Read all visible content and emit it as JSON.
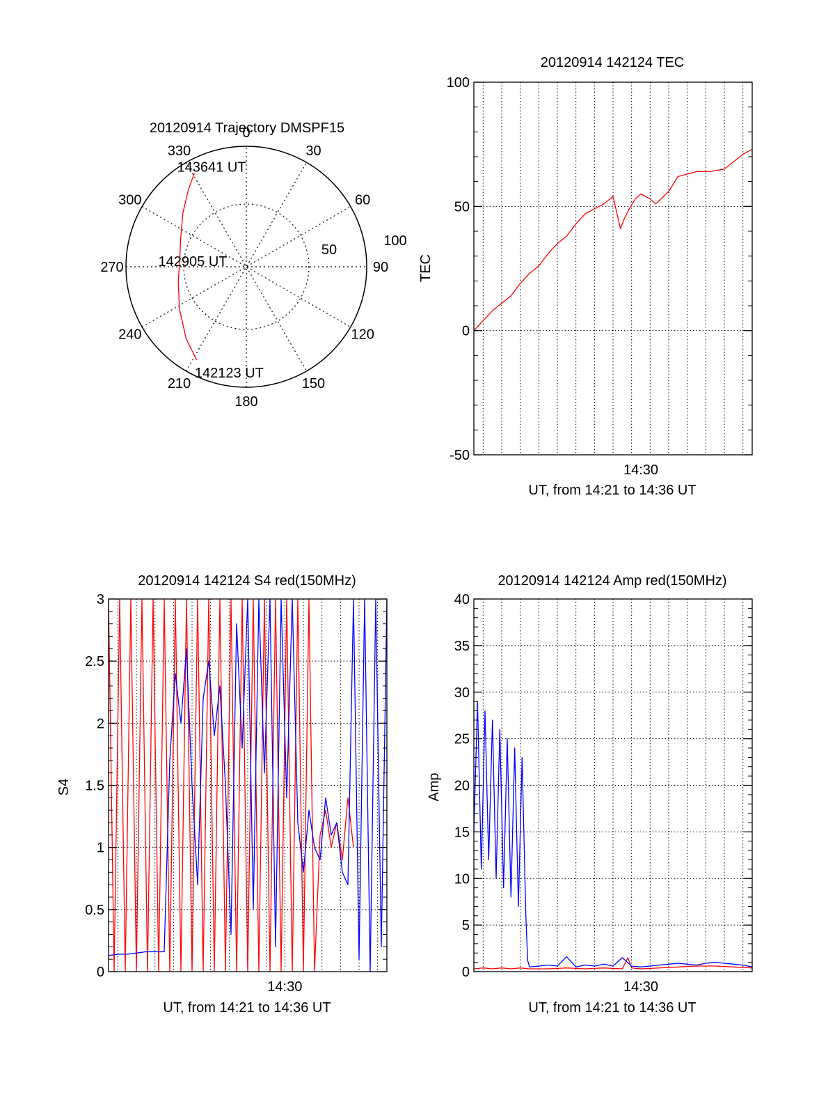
{
  "colors": {
    "red": "#ff0000",
    "blue": "#0000ff",
    "axis": "#000000",
    "background": "#ffffff"
  },
  "chart_data": [
    {
      "type": "polar",
      "title": "20120914 Trajectory DMSPF15",
      "angle_labels": [
        "0",
        "30",
        "60",
        "90",
        "120",
        "150",
        "180",
        "210",
        "240",
        "270",
        "300",
        "330"
      ],
      "radial_labels": [
        "50",
        "100"
      ],
      "grid": "dotted",
      "series": [
        {
          "color": "#ff0000",
          "points": [
            {
              "az": 208,
              "el": 11
            },
            {
              "az": 220,
              "el": 20
            },
            {
              "az": 238,
              "el": 31
            },
            {
              "az": 258,
              "el": 38
            },
            {
              "az": 275,
              "el": 40
            },
            {
              "az": 292,
              "el": 37
            },
            {
              "az": 310,
              "el": 28
            },
            {
              "az": 323,
              "el": 18
            },
            {
              "az": 331,
              "el": 10
            }
          ]
        }
      ],
      "annotations": [
        {
          "text": "143641 UT",
          "az": 341,
          "el": 11
        },
        {
          "text": "142905 UT",
          "az": 276,
          "el": 50
        },
        {
          "text": "142123 UT",
          "az": 189,
          "el": 10
        }
      ]
    },
    {
      "type": "line",
      "title": "20120914 142124 TEC",
      "xlabel": "UT, from 14:21 to 14:36 UT",
      "ylabel": "TEC",
      "xlim": [
        0,
        15
      ],
      "ylim": [
        -50,
        100
      ],
      "yticks": [
        -50,
        0,
        50,
        100
      ],
      "xticks": [
        {
          "x": 9,
          "label": "14:30"
        }
      ],
      "grid": true,
      "series": [
        {
          "color": "#ff0000",
          "x": [
            0.0,
            0.5,
            1.0,
            1.5,
            2.0,
            2.5,
            3.0,
            3.5,
            4.0,
            4.5,
            5.0,
            5.5,
            6.0,
            6.5,
            7.0,
            7.5,
            7.9,
            8.1,
            8.3,
            8.7,
            9.0,
            9.5,
            9.8,
            10.5,
            11.0,
            12.0,
            12.7,
            13.5,
            14.0,
            14.5,
            15.0
          ],
          "y": [
            0,
            4,
            8,
            11,
            14,
            19,
            23,
            26,
            31,
            35,
            38,
            43,
            47,
            49,
            51,
            54,
            41,
            45,
            48,
            53,
            55,
            53,
            51,
            56,
            62,
            64,
            64,
            65,
            68,
            71,
            73
          ]
        }
      ]
    },
    {
      "type": "line",
      "title": "20120914 142124 S4 red(150MHz)",
      "xlabel": "UT, from 14:21 to 14:36 UT",
      "ylabel": "S4",
      "xlim": [
        0,
        15
      ],
      "ylim": [
        0,
        3
      ],
      "yticks": [
        0,
        0.5,
        1,
        1.5,
        2,
        2.5,
        3
      ],
      "xticks": [
        {
          "x": 9.5,
          "label": "14:30"
        }
      ],
      "grid": true,
      "series": [
        {
          "color": "#ff0000",
          "x": [
            0.0,
            0.3,
            0.6,
            0.9,
            1.2,
            1.5,
            1.8,
            2.1,
            2.4,
            2.7,
            3.0,
            3.3,
            3.6,
            3.9,
            4.2,
            4.5,
            4.8,
            5.1,
            5.4,
            5.7,
            6.0,
            6.3,
            6.6,
            6.9,
            7.2,
            7.5,
            7.8,
            8.1,
            8.4,
            8.7,
            9.0,
            9.3,
            9.6,
            9.9,
            10.2,
            10.5,
            10.8,
            11.1,
            11.4,
            11.7,
            12.0,
            12.3,
            12.6,
            12.9,
            13.2
          ],
          "y": [
            3,
            0,
            3,
            0,
            3,
            0,
            3,
            0,
            3,
            0,
            3,
            0,
            3,
            0,
            3,
            0,
            3,
            0,
            3,
            0,
            3,
            0,
            3,
            0,
            3,
            0,
            3,
            0,
            3,
            0,
            3,
            0,
            3,
            0,
            3,
            0,
            3,
            0,
            1.1,
            1.3,
            1.0,
            1.2,
            0.9,
            1.4,
            1.0
          ]
        },
        {
          "color": "#0000ff",
          "x": [
            0.0,
            0.5,
            1.0,
            1.5,
            2.0,
            2.5,
            3.0,
            3.3,
            3.6,
            3.9,
            4.2,
            4.5,
            4.8,
            5.1,
            5.4,
            5.7,
            6.0,
            6.3,
            6.6,
            6.9,
            7.2,
            7.5,
            7.8,
            8.1,
            8.4,
            8.7,
            9.0,
            9.3,
            9.6,
            9.9,
            10.2,
            10.5,
            10.8,
            11.1,
            11.4,
            11.7,
            12.0,
            12.3,
            12.6,
            12.9,
            13.2,
            13.5,
            13.8,
            14.1,
            14.4,
            14.7,
            15.0
          ],
          "y": [
            0.13,
            0.14,
            0.14,
            0.15,
            0.16,
            0.16,
            0.16,
            1.7,
            2.4,
            2.0,
            2.6,
            1.5,
            0.7,
            2.2,
            2.5,
            1.9,
            2.3,
            1.5,
            0.3,
            2.8,
            1.8,
            3.0,
            0.5,
            3.0,
            1.6,
            3.0,
            0.2,
            3.0,
            1.4,
            3.0,
            1.2,
            0.8,
            1.3,
            1.0,
            0.9,
            1.4,
            1.1,
            1.2,
            0.8,
            0.7,
            3.0,
            0.1,
            3.0,
            0.0,
            3.0,
            0.2,
            3.0
          ]
        }
      ]
    },
    {
      "type": "line",
      "title": "20120914 142124 Amp red(150MHz)",
      "xlabel": "UT, from 14:21 to 14:36 UT",
      "ylabel": "Amp",
      "xlim": [
        0,
        15
      ],
      "ylim": [
        0,
        40
      ],
      "yticks": [
        0,
        5,
        10,
        15,
        20,
        25,
        30,
        35,
        40
      ],
      "xticks": [
        {
          "x": 9,
          "label": "14:30"
        }
      ],
      "grid": true,
      "series": [
        {
          "color": "#ff0000",
          "x": [
            0.0,
            0.5,
            1.0,
            1.5,
            2.0,
            2.5,
            3.0,
            4.0,
            5.0,
            6.0,
            7.0,
            8.0,
            8.3,
            8.5,
            9.0,
            10.0,
            11.0,
            12.0,
            13.0,
            14.0,
            15.0
          ],
          "y": [
            0.3,
            0.4,
            0.3,
            0.4,
            0.3,
            0.4,
            0.3,
            0.3,
            0.4,
            0.3,
            0.4,
            0.3,
            1.5,
            0.4,
            0.3,
            0.4,
            0.5,
            0.6,
            0.6,
            0.5,
            0.4
          ]
        },
        {
          "color": "#0000ff",
          "x": [
            0.0,
            0.2,
            0.4,
            0.6,
            0.8,
            1.0,
            1.2,
            1.4,
            1.6,
            1.8,
            2.0,
            2.2,
            2.4,
            2.6,
            2.8,
            2.9,
            3.0,
            3.5,
            4.0,
            4.5,
            5.0,
            5.5,
            6.0,
            6.5,
            7.0,
            7.5,
            8.0,
            8.5,
            9.0,
            9.5,
            10.0,
            10.5,
            11.0,
            11.5,
            12.0,
            12.5,
            13.0,
            13.5,
            14.0,
            14.5,
            15.0
          ],
          "y": [
            15,
            29,
            11,
            28,
            12,
            27,
            10,
            26,
            9,
            25,
            8,
            24,
            7,
            23,
            6,
            1.2,
            0.5,
            0.6,
            0.7,
            0.6,
            1.6,
            0.5,
            0.7,
            0.6,
            0.8,
            0.6,
            1.5,
            0.6,
            0.5,
            0.6,
            0.7,
            0.8,
            0.9,
            0.8,
            0.7,
            0.9,
            1.0,
            0.9,
            0.8,
            0.7,
            0.5
          ]
        }
      ]
    }
  ]
}
